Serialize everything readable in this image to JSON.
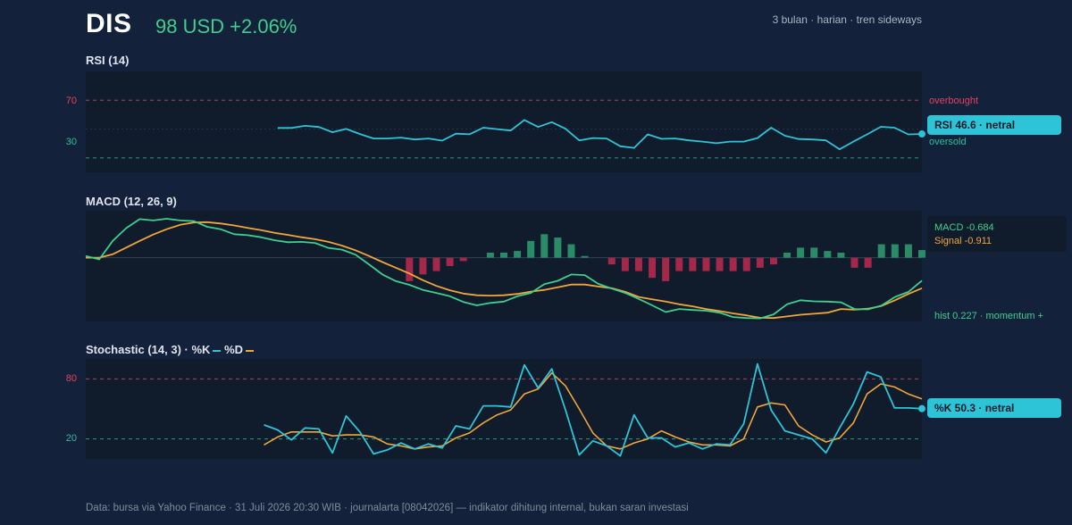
{
  "header": {
    "ticker": "DIS",
    "price": "98 USD +2.06%",
    "meta": "3 bulan · harian · tren sideways"
  },
  "footer": "Data: bursa via Yahoo Finance · 31 Juli 2026 20:30 WIB · journalarta [08042026] — indikator dihitung internal, bukan saran investasi",
  "colors": {
    "background": "#14213a",
    "panel": "#101c2c",
    "rsi_line": "#2ec4d8",
    "macd_line": "#3ecf8e",
    "signal_line": "#f0a63a",
    "hist_positive": "#2a8c67",
    "hist_negative": "#a3284a",
    "overbought": "#e0455e",
    "oversold": "#2ebf96"
  },
  "rsi": {
    "title": "RSI (14)",
    "tick_high": "70",
    "tick_low": "30",
    "overbought_label": "overbought",
    "oversold_label": "oversold",
    "badge": "RSI 46.6 · netral"
  },
  "macd": {
    "title": "MACD (12, 26, 9)",
    "macd_label": "MACD -0.684",
    "signal_label": "Signal -0.911",
    "hist_label": "hist 0.227 · momentum +"
  },
  "stoch": {
    "title": "Stochastic (14, 3) · %K",
    "d_label": "%D",
    "tick_high": "80",
    "tick_low": "20",
    "badge": "%K 50.3 · netral"
  },
  "chart_data": [
    {
      "type": "line",
      "title": "RSI (14)",
      "ylim": [
        20,
        90
      ],
      "reference_lines": [
        70,
        30
      ],
      "series": [
        {
          "values": [
            null,
            null,
            null,
            null,
            null,
            null,
            null,
            null,
            null,
            null,
            null,
            null,
            null,
            null,
            50.8,
            50.8,
            52.3,
            51.5,
            47.8,
            50.1,
            46.6,
            43.5,
            43.5,
            44.1,
            42.8,
            43.5,
            42.0,
            46.8,
            46.4,
            51.0,
            50.0,
            49.0,
            56.3,
            51.5,
            54.8,
            50.2,
            42.2,
            43.8,
            43.5,
            38.1,
            37.0,
            46.3,
            43.2,
            43.5,
            42.2,
            41.3,
            40.2,
            41.3,
            41.3,
            43.8,
            51.0,
            45.4,
            43.1,
            42.8,
            42.2,
            36.0,
            41.3,
            46.3,
            51.6,
            51.0,
            46.3,
            46.6
          ]
        }
      ]
    },
    {
      "type": "line",
      "title": "MACD (12, 26, 9)",
      "ylim": [
        -1.9,
        1.4
      ],
      "series": [
        {
          "name": "MACD",
          "values": [
            0.05,
            -0.05,
            0.5,
            0.88,
            1.15,
            1.11,
            1.16,
            1.11,
            1.09,
            0.92,
            0.85,
            0.7,
            0.67,
            0.61,
            0.52,
            0.46,
            0.47,
            0.44,
            0.29,
            0.24,
            0.09,
            -0.2,
            -0.5,
            -0.7,
            -0.81,
            -0.96,
            -1.05,
            -1.15,
            -1.32,
            -1.42,
            -1.35,
            -1.31,
            -1.15,
            -1.05,
            -0.79,
            -0.69,
            -0.5,
            -0.52,
            -0.78,
            -0.92,
            -1.05,
            -1.23,
            -1.42,
            -1.62,
            -1.53,
            -1.56,
            -1.58,
            -1.64,
            -1.77,
            -1.8,
            -1.81,
            -1.69,
            -1.39,
            -1.27,
            -1.3,
            -1.31,
            -1.33,
            -1.53,
            -1.54,
            -1.43,
            -1.17,
            -1.02,
            -0.684
          ]
        },
        {
          "name": "Signal",
          "values": [
            0.0,
            0.0,
            0.1,
            0.3,
            0.5,
            0.69,
            0.85,
            0.98,
            1.05,
            1.06,
            1.02,
            0.96,
            0.89,
            0.82,
            0.74,
            0.68,
            0.61,
            0.55,
            0.47,
            0.36,
            0.22,
            0.05,
            -0.13,
            -0.3,
            -0.47,
            -0.67,
            -0.84,
            -0.97,
            -1.07,
            -1.12,
            -1.13,
            -1.12,
            -1.08,
            -1.01,
            -0.96,
            -0.88,
            -0.8,
            -0.8,
            -0.86,
            -0.91,
            -1.02,
            -1.17,
            -1.24,
            -1.31,
            -1.39,
            -1.45,
            -1.53,
            -1.59,
            -1.66,
            -1.72,
            -1.79,
            -1.8,
            -1.75,
            -1.7,
            -1.67,
            -1.64,
            -1.53,
            -1.55,
            -1.52,
            -1.44,
            -1.27,
            -1.08,
            -0.911
          ]
        },
        {
          "name": "hist",
          "values": [
            0,
            0,
            0,
            0,
            0,
            0,
            0,
            0,
            0,
            0,
            0,
            0,
            0,
            0,
            0,
            0,
            0,
            0,
            0,
            0,
            0,
            0,
            0,
            0,
            -0.7,
            -0.5,
            -0.4,
            -0.25,
            -0.1,
            0.0,
            0.15,
            0.15,
            0.2,
            0.5,
            0.7,
            0.6,
            0.4,
            0.05,
            0.0,
            -0.2,
            -0.4,
            -0.4,
            -0.6,
            -0.7,
            -0.4,
            -0.4,
            -0.4,
            -0.4,
            -0.4,
            -0.4,
            -0.3,
            -0.2,
            0.15,
            0.3,
            0.3,
            0.2,
            0.15,
            -0.3,
            -0.3,
            0.4,
            0.4,
            0.4,
            0.227
          ]
        }
      ]
    },
    {
      "type": "line",
      "title": "Stochastic (14, 3)",
      "ylim": [
        0,
        100
      ],
      "reference_lines": [
        80,
        20
      ],
      "series": [
        {
          "name": "%K",
          "values": [
            null,
            null,
            null,
            null,
            null,
            null,
            null,
            null,
            null,
            null,
            null,
            null,
            null,
            34,
            29,
            19,
            31,
            30,
            6,
            43,
            27,
            5,
            9,
            16,
            10,
            15,
            11,
            33,
            30,
            53,
            53,
            52,
            94,
            71,
            90,
            49,
            4,
            18,
            13,
            3,
            44,
            21,
            21,
            12,
            16,
            10,
            15,
            14,
            35,
            95,
            49,
            28,
            24,
            20,
            6,
            31,
            55,
            87,
            82,
            51,
            51,
            50.3
          ]
        },
        {
          "name": "%D",
          "values": [
            null,
            null,
            null,
            null,
            null,
            null,
            null,
            null,
            null,
            null,
            null,
            null,
            null,
            14,
            22,
            27,
            27,
            27,
            23,
            24,
            24,
            22,
            15,
            13,
            10,
            12,
            13,
            21,
            26,
            36,
            44,
            49,
            65,
            70,
            86,
            73,
            50,
            26,
            13,
            10,
            16,
            20,
            28,
            22,
            17,
            14,
            14,
            13,
            20,
            52,
            56,
            54,
            33,
            24,
            17,
            21,
            36,
            65,
            75,
            72,
            65,
            60
          ]
        }
      ]
    }
  ]
}
